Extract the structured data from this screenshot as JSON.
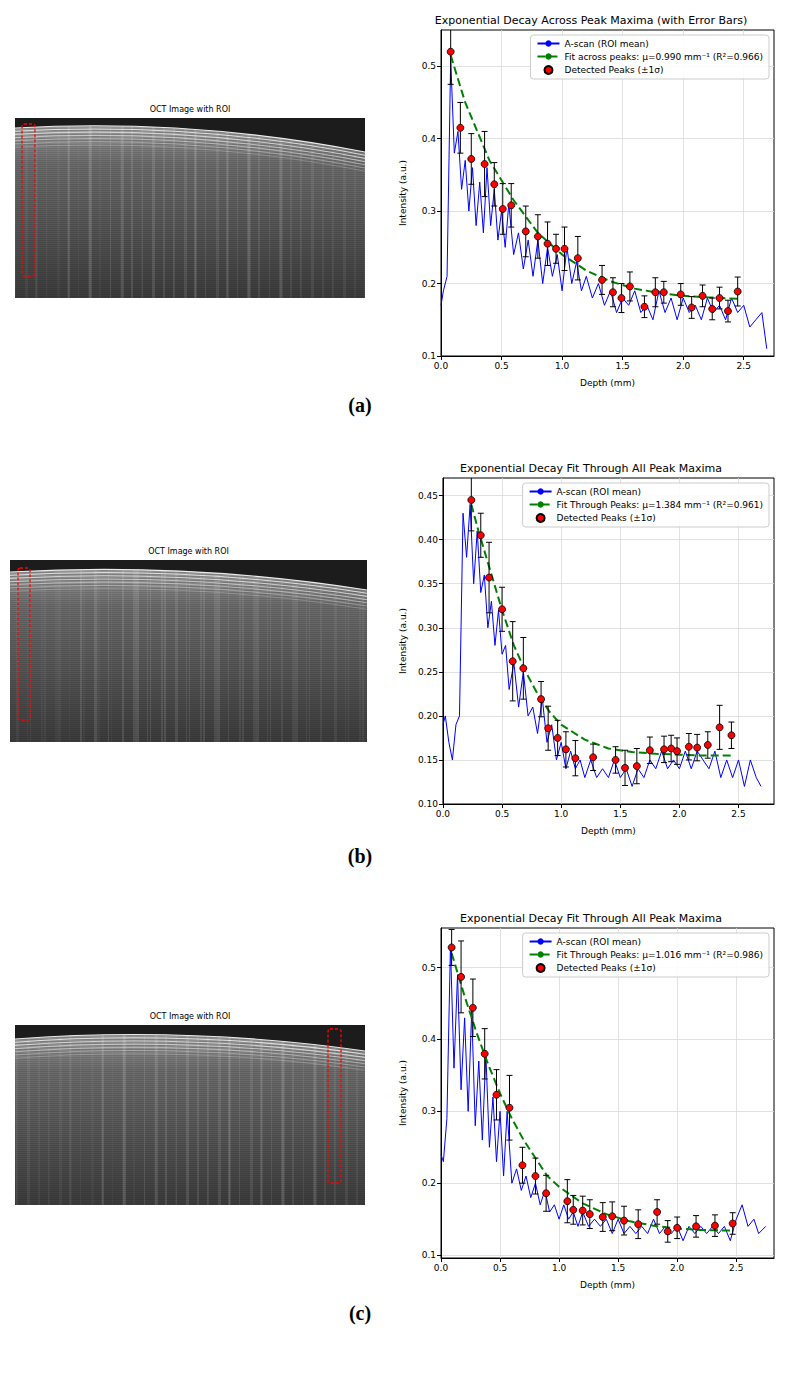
{
  "panels": [
    {
      "label": "(a)",
      "image_title": "OCT Image with ROI"
    },
    {
      "label": "(b)",
      "image_title": "OCT Image with ROI"
    },
    {
      "label": "(c)",
      "image_title": "OCT Image with ROI"
    }
  ],
  "chart_data": [
    {
      "type": "line",
      "title": "Exponential Decay Across Peak Maxima (with Error Bars)",
      "xlabel": "Depth (mm)",
      "ylabel": "Intensity (a.u.)",
      "xlim": [
        0,
        2.75
      ],
      "ylim": [
        0.1,
        0.55
      ],
      "xticks": [
        {
          "value": 0,
          "label": "0.0"
        },
        0.5,
        {
          "value": 1,
          "label": "1.0"
        },
        1.5,
        {
          "value": 2,
          "label": "2.0"
        },
        2.5
      ],
      "yticks": [
        0.1,
        0.2,
        0.3,
        0.4,
        0.5
      ],
      "grid": true,
      "legend": "upper right",
      "series": [
        {
          "name": "A-scan (ROI mean)",
          "type": "line",
          "color": "#0000ff",
          "line_style": "solid",
          "x": [
            0,
            0.02,
            0.05,
            0.08,
            0.11,
            0.14,
            0.17,
            0.2,
            0.23,
            0.26,
            0.29,
            0.32,
            0.35,
            0.38,
            0.41,
            0.44,
            0.47,
            0.5,
            0.53,
            0.56,
            0.6,
            0.64,
            0.68,
            0.72,
            0.76,
            0.8,
            0.84,
            0.88,
            0.92,
            0.96,
            1.0,
            1.04,
            1.08,
            1.12,
            1.16,
            1.2,
            1.25,
            1.3,
            1.35,
            1.4,
            1.45,
            1.5,
            1.55,
            1.6,
            1.65,
            1.7,
            1.75,
            1.8,
            1.85,
            1.9,
            1.95,
            2.0,
            2.05,
            2.1,
            2.15,
            2.2,
            2.25,
            2.3,
            2.35,
            2.4,
            2.45,
            2.5,
            2.55,
            2.6,
            2.65,
            2.69
          ],
          "values": [
            0.17,
            0.19,
            0.21,
            0.51,
            0.38,
            0.41,
            0.33,
            0.37,
            0.3,
            0.36,
            0.28,
            0.34,
            0.27,
            0.36,
            0.28,
            0.33,
            0.26,
            0.3,
            0.25,
            0.31,
            0.24,
            0.27,
            0.22,
            0.26,
            0.21,
            0.26,
            0.2,
            0.25,
            0.21,
            0.24,
            0.19,
            0.25,
            0.2,
            0.23,
            0.19,
            0.21,
            0.18,
            0.2,
            0.17,
            0.19,
            0.16,
            0.18,
            0.17,
            0.19,
            0.16,
            0.17,
            0.15,
            0.19,
            0.16,
            0.18,
            0.15,
            0.18,
            0.16,
            0.17,
            0.15,
            0.18,
            0.16,
            0.17,
            0.15,
            0.18,
            0.16,
            0.17,
            0.14,
            0.15,
            0.16,
            0.11
          ]
        },
        {
          "name": "Fit across peaks: μ=0.990 mm⁻¹ (R²=0.966)",
          "type": "line",
          "color": "#008000",
          "line_style": "dashed",
          "x": [
            0.08,
            0.2,
            0.4,
            0.6,
            0.8,
            1.0,
            1.2,
            1.4,
            1.6,
            1.8,
            2.0,
            2.2,
            2.45
          ],
          "values": [
            0.515,
            0.45,
            0.37,
            0.315,
            0.27,
            0.24,
            0.218,
            0.203,
            0.193,
            0.187,
            0.183,
            0.181,
            0.179
          ]
        },
        {
          "name": "Detected Peaks (±1σ)",
          "type": "scatter",
          "color": "#ff0000",
          "marker": "o",
          "x": [
            0.08,
            0.16,
            0.25,
            0.36,
            0.44,
            0.51,
            0.58,
            0.7,
            0.8,
            0.88,
            0.95,
            1.02,
            1.13,
            1.33,
            1.42,
            1.49,
            1.56,
            1.68,
            1.77,
            1.84,
            1.98,
            2.07,
            2.16,
            2.24,
            2.3,
            2.37,
            2.45
          ],
          "values": [
            0.52,
            0.415,
            0.372,
            0.365,
            0.337,
            0.303,
            0.308,
            0.272,
            0.265,
            0.255,
            0.248,
            0.248,
            0.235,
            0.205,
            0.188,
            0.18,
            0.196,
            0.168,
            0.188,
            0.188,
            0.185,
            0.167,
            0.183,
            0.165,
            0.18,
            0.162,
            0.189
          ],
          "errors": [
            0.045,
            0.035,
            0.035,
            0.045,
            0.03,
            0.035,
            0.03,
            0.035,
            0.03,
            0.03,
            0.02,
            0.03,
            0.03,
            0.02,
            0.02,
            0.02,
            0.02,
            0.015,
            0.02,
            0.015,
            0.015,
            0.015,
            0.015,
            0.015,
            0.015,
            0.015,
            0.02
          ]
        }
      ]
    },
    {
      "type": "line",
      "title": "Exponential Decay Fit Through All Peak Maxima",
      "xlabel": "Depth (mm)",
      "ylabel": "Intensity (a.u.)",
      "xlim": [
        0,
        2.8
      ],
      "ylim": [
        0.1,
        0.47
      ],
      "xticks": [
        {
          "value": 0,
          "label": "0.0"
        },
        0.5,
        {
          "value": 1,
          "label": "1.0"
        },
        1.5,
        {
          "value": 2,
          "label": "2.0"
        },
        2.5
      ],
      "yticks": [
        {
          "value": 0.1,
          "label": "0.10"
        },
        0.15,
        {
          "value": 0.2,
          "label": "0.20"
        },
        0.25,
        {
          "value": 0.3,
          "label": "0.30"
        },
        0.35,
        {
          "value": 0.4,
          "label": "0.40"
        },
        0.45
      ],
      "grid": true,
      "legend": "upper right",
      "series": [
        {
          "name": "A-scan (ROI mean)",
          "type": "line",
          "color": "#0000ff",
          "line_style": "solid",
          "x": [
            0,
            0.02,
            0.05,
            0.08,
            0.11,
            0.14,
            0.17,
            0.2,
            0.23,
            0.26,
            0.29,
            0.32,
            0.35,
            0.38,
            0.41,
            0.44,
            0.47,
            0.5,
            0.53,
            0.56,
            0.6,
            0.64,
            0.68,
            0.72,
            0.76,
            0.8,
            0.84,
            0.88,
            0.92,
            0.96,
            1.0,
            1.04,
            1.08,
            1.12,
            1.16,
            1.2,
            1.25,
            1.3,
            1.35,
            1.4,
            1.45,
            1.5,
            1.55,
            1.6,
            1.65,
            1.7,
            1.75,
            1.8,
            1.85,
            1.9,
            1.95,
            2.0,
            2.05,
            2.1,
            2.15,
            2.2,
            2.25,
            2.3,
            2.35,
            2.4,
            2.45,
            2.5,
            2.55,
            2.6,
            2.65,
            2.69
          ],
          "values": [
            0.19,
            0.2,
            0.17,
            0.15,
            0.19,
            0.2,
            0.43,
            0.38,
            0.44,
            0.35,
            0.41,
            0.34,
            0.36,
            0.3,
            0.33,
            0.28,
            0.32,
            0.27,
            0.28,
            0.23,
            0.26,
            0.21,
            0.25,
            0.2,
            0.21,
            0.18,
            0.22,
            0.17,
            0.19,
            0.15,
            0.17,
            0.14,
            0.16,
            0.14,
            0.15,
            0.13,
            0.15,
            0.13,
            0.14,
            0.13,
            0.15,
            0.13,
            0.14,
            0.12,
            0.14,
            0.13,
            0.15,
            0.14,
            0.16,
            0.14,
            0.15,
            0.14,
            0.16,
            0.14,
            0.16,
            0.15,
            0.14,
            0.16,
            0.13,
            0.15,
            0.13,
            0.15,
            0.12,
            0.15,
            0.13,
            0.12
          ]
        },
        {
          "name": "Fit Through Peaks: μ=1.384 mm⁻¹ (R²=0.961)",
          "type": "line",
          "color": "#008000",
          "line_style": "dashed",
          "x": [
            0.24,
            0.3,
            0.4,
            0.5,
            0.6,
            0.7,
            0.8,
            0.9,
            1.0,
            1.2,
            1.4,
            1.6,
            1.8,
            2.0,
            2.2,
            2.45
          ],
          "values": [
            0.44,
            0.41,
            0.365,
            0.32,
            0.28,
            0.25,
            0.225,
            0.205,
            0.19,
            0.173,
            0.163,
            0.159,
            0.157,
            0.156,
            0.155,
            0.155
          ]
        },
        {
          "name": "Detected Peaks (±1σ)",
          "type": "scatter",
          "color": "#ff0000",
          "marker": "o",
          "x": [
            0.24,
            0.32,
            0.39,
            0.5,
            0.59,
            0.68,
            0.83,
            0.89,
            0.97,
            1.04,
            1.12,
            1.27,
            1.46,
            1.54,
            1.64,
            1.75,
            1.87,
            1.93,
            1.98,
            2.08,
            2.15,
            2.24,
            2.34,
            2.44
          ],
          "values": [
            0.445,
            0.405,
            0.357,
            0.321,
            0.262,
            0.254,
            0.219,
            0.186,
            0.175,
            0.162,
            0.152,
            0.153,
            0.15,
            0.141,
            0.143,
            0.161,
            0.162,
            0.163,
            0.16,
            0.165,
            0.164,
            0.167,
            0.187,
            0.178
          ],
          "errors": [
            0.035,
            0.025,
            0.04,
            0.025,
            0.045,
            0.035,
            0.02,
            0.025,
            0.02,
            0.02,
            0.02,
            0.015,
            0.015,
            0.02,
            0.02,
            0.015,
            0.015,
            0.015,
            0.015,
            0.015,
            0.015,
            0.015,
            0.025,
            0.015
          ]
        }
      ]
    },
    {
      "type": "line",
      "title": "Exponential Decay Fit Through All Peak Maxima",
      "xlabel": "Depth (mm)",
      "ylabel": "Intensity (a.u.)",
      "xlim": [
        0,
        2.82
      ],
      "ylim": [
        0.096,
        0.555
      ],
      "xticks": [
        {
          "value": 0,
          "label": "0.0"
        },
        0.5,
        {
          "value": 1,
          "label": "1.0"
        },
        1.5,
        {
          "value": 2,
          "label": "2.0"
        },
        2.5
      ],
      "yticks": [
        0.1,
        0.2,
        0.3,
        0.4,
        0.5
      ],
      "grid": true,
      "legend": "upper right",
      "series": [
        {
          "name": "A-scan (ROI mean)",
          "type": "line",
          "color": "#0000ff",
          "line_style": "solid",
          "x": [
            0,
            0.02,
            0.05,
            0.08,
            0.11,
            0.14,
            0.17,
            0.2,
            0.23,
            0.26,
            0.29,
            0.32,
            0.35,
            0.38,
            0.41,
            0.44,
            0.47,
            0.5,
            0.53,
            0.56,
            0.6,
            0.64,
            0.68,
            0.72,
            0.76,
            0.8,
            0.84,
            0.88,
            0.92,
            0.96,
            1.0,
            1.04,
            1.08,
            1.12,
            1.16,
            1.2,
            1.25,
            1.3,
            1.35,
            1.4,
            1.45,
            1.5,
            1.55,
            1.6,
            1.65,
            1.7,
            1.75,
            1.8,
            1.85,
            1.9,
            1.95,
            2.0,
            2.05,
            2.1,
            2.15,
            2.2,
            2.25,
            2.3,
            2.35,
            2.4,
            2.45,
            2.5,
            2.55,
            2.6,
            2.65,
            2.69,
            2.75
          ],
          "values": [
            0.24,
            0.23,
            0.29,
            0.53,
            0.36,
            0.49,
            0.33,
            0.43,
            0.3,
            0.44,
            0.28,
            0.37,
            0.26,
            0.38,
            0.25,
            0.32,
            0.23,
            0.3,
            0.21,
            0.3,
            0.2,
            0.22,
            0.19,
            0.21,
            0.18,
            0.2,
            0.17,
            0.19,
            0.16,
            0.17,
            0.15,
            0.17,
            0.15,
            0.16,
            0.14,
            0.16,
            0.14,
            0.15,
            0.14,
            0.15,
            0.13,
            0.15,
            0.13,
            0.14,
            0.13,
            0.14,
            0.13,
            0.15,
            0.13,
            0.14,
            0.13,
            0.14,
            0.12,
            0.14,
            0.13,
            0.14,
            0.13,
            0.14,
            0.13,
            0.14,
            0.12,
            0.15,
            0.17,
            0.14,
            0.15,
            0.13,
            0.14
          ]
        },
        {
          "name": "Fit Through Peaks: μ=1.016 mm⁻¹ (R²=0.986)",
          "type": "line",
          "color": "#008000",
          "line_style": "dashed",
          "x": [
            0.09,
            0.2,
            0.3,
            0.4,
            0.5,
            0.6,
            0.7,
            0.8,
            0.9,
            1.0,
            1.2,
            1.4,
            1.6,
            1.8,
            2.0,
            2.2,
            2.47
          ],
          "values": [
            0.52,
            0.46,
            0.41,
            0.365,
            0.325,
            0.29,
            0.26,
            0.235,
            0.21,
            0.195,
            0.172,
            0.157,
            0.147,
            0.141,
            0.137,
            0.135,
            0.134
          ]
        },
        {
          "name": "Detected Peaks (±1σ)",
          "type": "scatter",
          "color": "#ff0000",
          "marker": "o",
          "x": [
            0.09,
            0.17,
            0.27,
            0.37,
            0.47,
            0.58,
            0.69,
            0.8,
            0.89,
            1.07,
            1.12,
            1.2,
            1.26,
            1.37,
            1.45,
            1.55,
            1.67,
            1.83,
            1.92,
            2.0,
            2.16,
            2.32,
            2.47
          ],
          "values": [
            0.528,
            0.487,
            0.444,
            0.38,
            0.323,
            0.305,
            0.225,
            0.21,
            0.186,
            0.175,
            0.163,
            0.162,
            0.157,
            0.153,
            0.154,
            0.148,
            0.143,
            0.16,
            0.133,
            0.138,
            0.14,
            0.141,
            0.144
          ],
          "errors": [
            0.025,
            0.05,
            0.04,
            0.035,
            0.035,
            0.045,
            0.025,
            0.025,
            0.025,
            0.03,
            0.02,
            0.02,
            0.02,
            0.02,
            0.02,
            0.02,
            0.02,
            0.017,
            0.015,
            0.015,
            0.015,
            0.015,
            0.015
          ]
        }
      ]
    }
  ]
}
